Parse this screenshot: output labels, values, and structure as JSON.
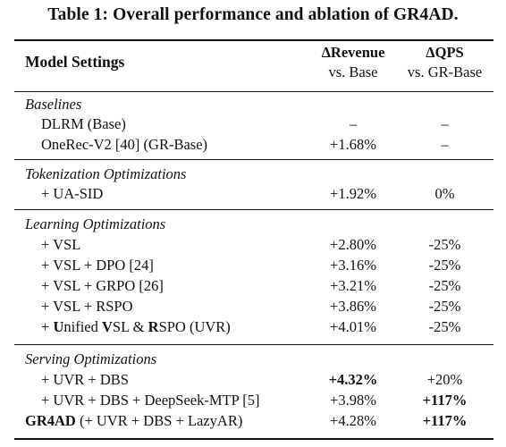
{
  "title": "Table 1: Overall performance and ablation of GR4AD.",
  "header": {
    "label": "Model Settings",
    "revenue_main": "ΔRevenue",
    "revenue_sub": "vs. Base",
    "qps_main": "ΔQPS",
    "qps_sub": "vs. GR-Base"
  },
  "sections": [
    {
      "name": "Baselines",
      "rows": [
        {
          "label": "DLRM (Base)",
          "revenue": "–",
          "qps": "–"
        },
        {
          "label": "OneRec-V2 [40] (GR-Base)",
          "revenue": "+1.68%",
          "qps": "–"
        }
      ]
    },
    {
      "name": "Tokenization Optimizations",
      "rows": [
        {
          "label": "+ UA-SID",
          "revenue": "+1.92%",
          "qps": "0%"
        }
      ]
    },
    {
      "name": "Learning Optimizations",
      "rows": [
        {
          "label": "+ VSL",
          "revenue": "+2.80%",
          "qps": "-25%"
        },
        {
          "label": "+ VSL + DPO [24]",
          "revenue": "+3.16%",
          "qps": "-25%"
        },
        {
          "label": "+ VSL + GRPO [26]",
          "revenue": "+3.21%",
          "qps": "-25%"
        },
        {
          "label": "+ VSL + RSPO",
          "revenue": "+3.86%",
          "qps": "-25%"
        },
        {
          "label_parts": [
            {
              "text": "+ ",
              "bold": false
            },
            {
              "text": "U",
              "bold": true
            },
            {
              "text": "nified ",
              "bold": false
            },
            {
              "text": "V",
              "bold": true
            },
            {
              "text": "SL & ",
              "bold": false
            },
            {
              "text": "R",
              "bold": true
            },
            {
              "text": "SPO (UVR)",
              "bold": false
            }
          ],
          "revenue": "+4.01%",
          "qps": "-25%"
        }
      ]
    },
    {
      "name": "Serving Optimizations",
      "rows": [
        {
          "label": "+ UVR + DBS",
          "revenue": "+4.32%",
          "revenue_bold": true,
          "qps": "+20%"
        },
        {
          "label": "+ UVR + DBS + DeepSeek-MTP [5]",
          "revenue": "+3.98%",
          "qps": "+117%",
          "qps_bold": true
        },
        {
          "label_parts": [
            {
              "text": "GR4AD",
              "bold": true
            },
            {
              "text": " (+ UVR + DBS + LazyAR)",
              "bold": false
            }
          ],
          "revenue": "+4.28%",
          "qps": "+117%",
          "qps_bold": true,
          "indent": false
        }
      ]
    }
  ]
}
